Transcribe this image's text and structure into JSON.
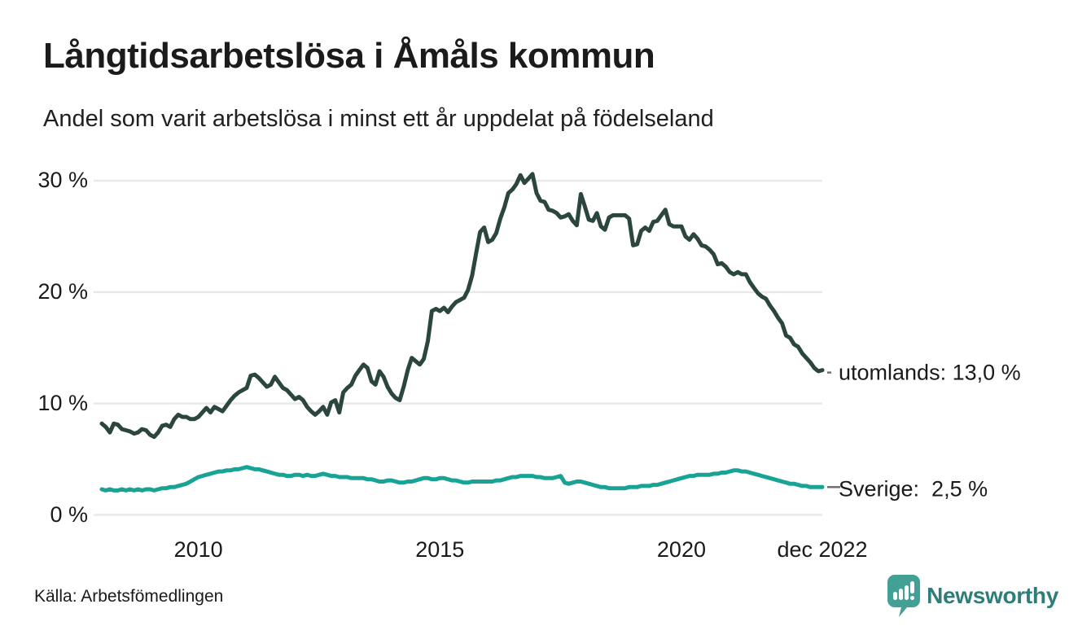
{
  "header": {
    "title": "Långtidsarbetslösa i Åmåls kommun",
    "subtitle": "Andel som varit arbetslösa i minst ett år uppdelat på födelseland"
  },
  "chart_data": {
    "type": "line",
    "unit": "%",
    "x_start": "2008-01",
    "x_end": "2022-12",
    "frequency": "monthly",
    "ylim": [
      0,
      31
    ],
    "grid": "horizontal",
    "colors": {
      "grid": "#e9e9ec",
      "leader": "#6f6f6f"
    },
    "y_ticks": [
      {
        "value": 0,
        "label": "0 %"
      },
      {
        "value": 10,
        "label": "10 %"
      },
      {
        "value": 20,
        "label": "20 %"
      },
      {
        "value": 30,
        "label": "30 %"
      }
    ],
    "x_ticks": [
      {
        "label": "2010",
        "month_index": 24
      },
      {
        "label": "2015",
        "month_index": 84
      },
      {
        "label": "2020",
        "month_index": 144
      },
      {
        "label": "dec 2022",
        "month_index": 179
      }
    ],
    "series": [
      {
        "name": "utomlands",
        "end_label": "utomlands: 13,0 %",
        "end_value": 13.0,
        "color": "#2a463f",
        "leader": "dot",
        "values": [
          8.2,
          7.9,
          7.4,
          8.2,
          8.1,
          7.7,
          7.6,
          7.5,
          7.3,
          7.4,
          7.7,
          7.6,
          7.2,
          7.0,
          7.4,
          8.0,
          8.1,
          7.9,
          8.6,
          9.0,
          8.8,
          8.8,
          8.6,
          8.6,
          8.8,
          9.2,
          9.6,
          9.2,
          9.7,
          9.5,
          9.3,
          9.8,
          10.3,
          10.7,
          11.0,
          11.2,
          11.4,
          12.5,
          12.6,
          12.3,
          11.9,
          11.5,
          11.7,
          12.4,
          11.9,
          11.4,
          11.2,
          10.8,
          10.4,
          10.6,
          10.3,
          9.7,
          9.3,
          9.0,
          9.3,
          9.7,
          9.0,
          10.1,
          10.3,
          9.2,
          11.0,
          11.4,
          11.7,
          12.5,
          13.0,
          13.5,
          13.2,
          12.0,
          11.7,
          12.9,
          12.4,
          11.5,
          10.9,
          10.5,
          10.3,
          11.5,
          13.0,
          14.1,
          13.8,
          13.5,
          14.0,
          15.6,
          18.3,
          18.5,
          18.3,
          18.6,
          18.2,
          18.7,
          19.1,
          19.3,
          19.5,
          20.2,
          21.5,
          23.5,
          25.4,
          25.8,
          24.5,
          24.7,
          25.3,
          26.6,
          27.6,
          28.9,
          29.2,
          29.7,
          30.5,
          29.8,
          30.2,
          30.6,
          28.9,
          28.2,
          28.1,
          27.4,
          27.3,
          27.1,
          26.7,
          26.8,
          27.0,
          26.4,
          26.0,
          28.8,
          27.7,
          26.5,
          26.4,
          27.1,
          25.9,
          25.6,
          26.7,
          26.9,
          26.9,
          26.9,
          26.9,
          26.6,
          24.2,
          24.3,
          25.5,
          25.8,
          25.5,
          26.3,
          26.4,
          26.9,
          27.4,
          26.1,
          25.9,
          25.9,
          25.9,
          25.0,
          24.7,
          25.2,
          24.8,
          24.2,
          24.1,
          23.8,
          23.4,
          22.5,
          22.6,
          22.3,
          21.8,
          21.6,
          21.8,
          21.6,
          21.6,
          20.9,
          20.4,
          19.9,
          19.6,
          19.4,
          18.8,
          18.3,
          17.7,
          17.2,
          16.1,
          15.9,
          15.3,
          15.1,
          14.5,
          14.1,
          13.7,
          13.2,
          12.9,
          13.0
        ]
      },
      {
        "name": "Sverige",
        "end_label": "Sverige:  2,5 %",
        "end_value": 2.5,
        "color": "#18a395",
        "leader": "dash",
        "values": [
          2.3,
          2.2,
          2.3,
          2.2,
          2.2,
          2.3,
          2.2,
          2.3,
          2.2,
          2.3,
          2.2,
          2.3,
          2.3,
          2.2,
          2.3,
          2.4,
          2.4,
          2.5,
          2.5,
          2.6,
          2.7,
          2.8,
          3.0,
          3.2,
          3.4,
          3.5,
          3.6,
          3.7,
          3.8,
          3.9,
          3.9,
          4.0,
          4.0,
          4.1,
          4.1,
          4.2,
          4.3,
          4.2,
          4.1,
          4.1,
          4.0,
          3.9,
          3.8,
          3.7,
          3.6,
          3.6,
          3.5,
          3.5,
          3.6,
          3.6,
          3.5,
          3.6,
          3.5,
          3.5,
          3.6,
          3.7,
          3.6,
          3.5,
          3.5,
          3.4,
          3.4,
          3.4,
          3.3,
          3.3,
          3.3,
          3.3,
          3.2,
          3.2,
          3.1,
          3.0,
          3.0,
          3.1,
          3.1,
          3.0,
          2.9,
          2.9,
          3.0,
          3.0,
          3.1,
          3.2,
          3.3,
          3.3,
          3.2,
          3.2,
          3.3,
          3.3,
          3.2,
          3.1,
          3.1,
          3.0,
          2.9,
          2.9,
          3.0,
          3.0,
          3.0,
          3.0,
          3.0,
          3.0,
          3.1,
          3.1,
          3.2,
          3.3,
          3.4,
          3.4,
          3.5,
          3.5,
          3.5,
          3.5,
          3.4,
          3.4,
          3.3,
          3.3,
          3.3,
          3.4,
          3.5,
          2.9,
          2.8,
          2.9,
          3.0,
          3.0,
          2.9,
          2.8,
          2.7,
          2.6,
          2.5,
          2.5,
          2.4,
          2.4,
          2.4,
          2.4,
          2.4,
          2.5,
          2.5,
          2.5,
          2.6,
          2.6,
          2.6,
          2.7,
          2.7,
          2.8,
          2.9,
          3.0,
          3.1,
          3.2,
          3.3,
          3.4,
          3.5,
          3.5,
          3.6,
          3.6,
          3.6,
          3.6,
          3.7,
          3.7,
          3.8,
          3.8,
          3.9,
          4.0,
          4.0,
          3.9,
          3.9,
          3.8,
          3.7,
          3.6,
          3.5,
          3.4,
          3.3,
          3.2,
          3.1,
          3.0,
          2.9,
          2.8,
          2.8,
          2.7,
          2.6,
          2.6,
          2.5,
          2.5,
          2.5,
          2.5
        ]
      }
    ]
  },
  "footer": {
    "source": "Källa: Arbetsfömedlingen",
    "brand_name": "Newsworthy",
    "brand_color": "#2e7d7a",
    "brand_pin_color": "#42a096"
  }
}
